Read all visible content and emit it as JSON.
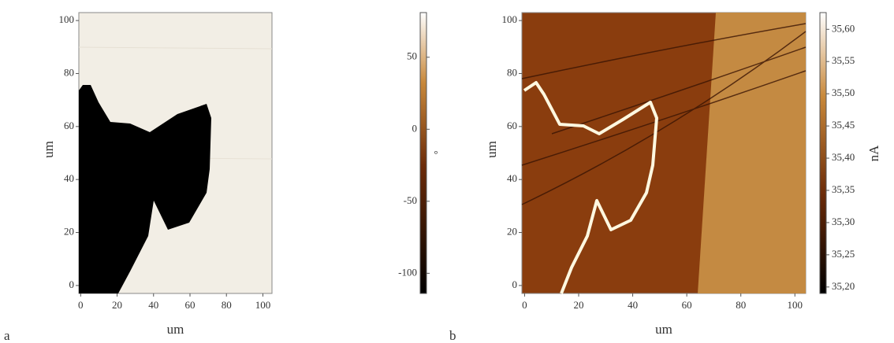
{
  "chart_data": [
    {
      "type": "image",
      "panel_label": "a",
      "x_label": "um",
      "y_label": "um",
      "xlim": [
        -1,
        105
      ],
      "ylim": [
        -3,
        103
      ],
      "xticks": [
        0,
        20,
        40,
        60,
        80,
        100
      ],
      "yticks": [
        0,
        20,
        40,
        60,
        80,
        100
      ],
      "colorbar": {
        "lim": [
          -114,
          81
        ],
        "ticks": [
          50,
          0,
          -50,
          -100
        ],
        "label": "°"
      }
    },
    {
      "type": "image",
      "panel_label": "b",
      "x_label": "um",
      "y_label": "um",
      "xlim": [
        -1,
        104
      ],
      "ylim": [
        -3,
        103
      ],
      "xticks": [
        0,
        20,
        40,
        60,
        80,
        100
      ],
      "yticks": [
        0,
        20,
        40,
        60,
        80,
        100
      ],
      "colorbar": {
        "lim": [
          35.19,
          35.626
        ],
        "label": "nA",
        "ticks": [
          {
            "value": 35.6,
            "label": "35,60"
          },
          {
            "value": 35.55,
            "label": "35,55"
          },
          {
            "value": 35.5,
            "label": "35,50"
          },
          {
            "value": 35.45,
            "label": "35,45"
          },
          {
            "value": 35.4,
            "label": "35,40"
          },
          {
            "value": 35.35,
            "label": "35,35"
          },
          {
            "value": 35.3,
            "label": "35,30"
          },
          {
            "value": 35.25,
            "label": "35,25"
          },
          {
            "value": 35.2,
            "label": "35,20"
          }
        ]
      }
    }
  ]
}
